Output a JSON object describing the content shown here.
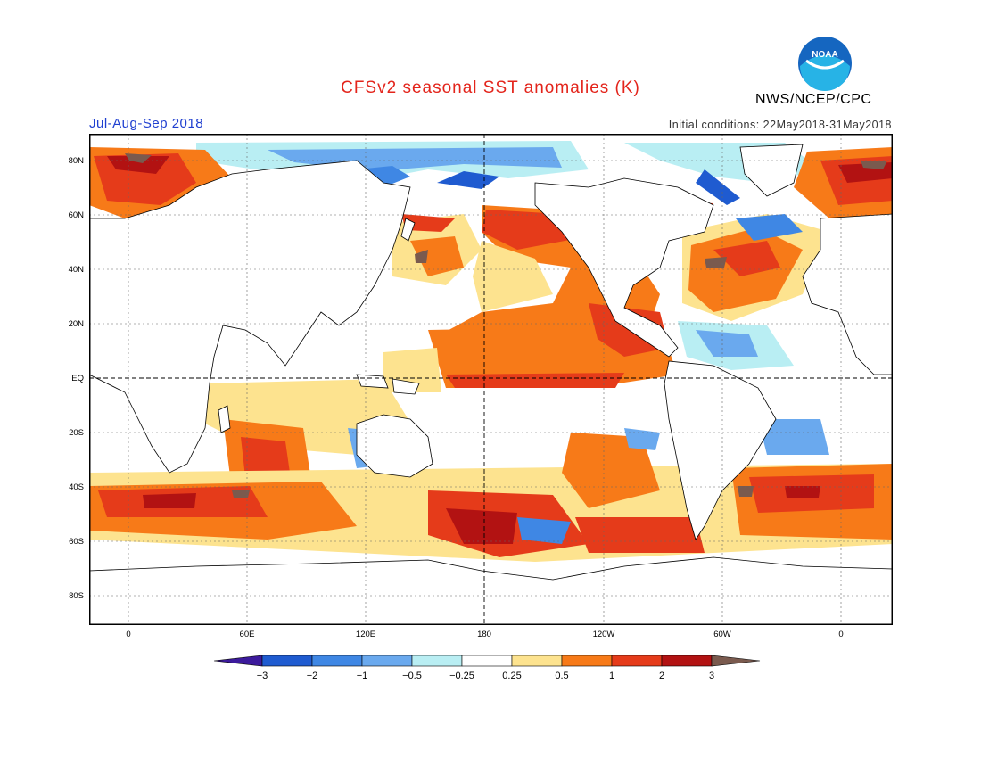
{
  "header": {
    "title": "CFSv2 seasonal SST anomalies (K)",
    "season": "Jul-Aug-Sep 2018",
    "initial_conditions": "Initial conditions: 22May2018-31May2018",
    "agency": "NWS/NCEP/CPC",
    "logo_text": "NOAA"
  },
  "map": {
    "lat_labels": [
      "80N",
      "60N",
      "40N",
      "20N",
      "EQ",
      "20S",
      "40S",
      "60S",
      "80S"
    ],
    "lon_labels": [
      "0",
      "60E",
      "120E",
      "180",
      "120W",
      "60W",
      "0"
    ]
  },
  "colorbar": {
    "tick_labels": [
      "−3",
      "−2",
      "−1",
      "−0.5",
      "−0.25",
      "0.25",
      "0.5",
      "1",
      "2",
      "3"
    ],
    "colors": [
      "#3c1a9c",
      "#1f5bd0",
      "#3f87e4",
      "#6aa9ee",
      "#b9eef3",
      "#ffffff",
      "#fde38f",
      "#f77a18",
      "#e53b1a",
      "#b21212",
      "#7a5a4e"
    ]
  },
  "colors": {
    "title": "#e3241b",
    "season": "#1f3fd0",
    "noaa_blue": "#1566c0",
    "noaa_cyan": "#27b3e6"
  }
}
